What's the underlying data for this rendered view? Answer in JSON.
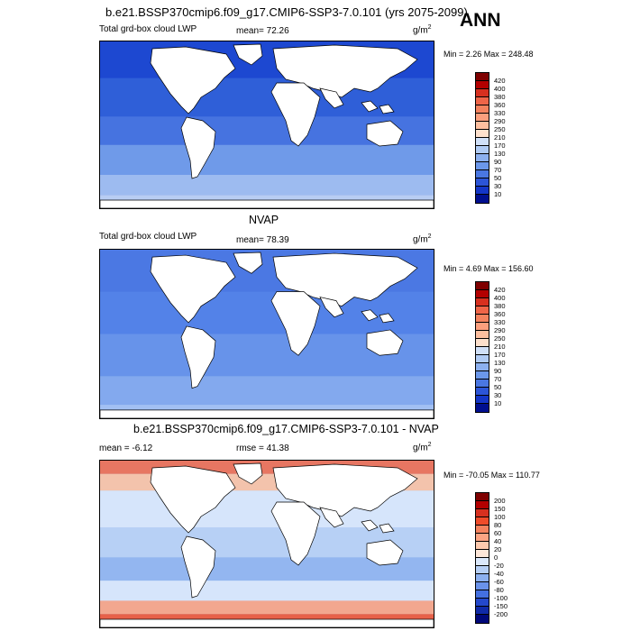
{
  "header": {
    "title": "b.e21.BSSP370cmip6.f09_g17.CMIP6-SSP3-7.0.101 (yrs 2075-2099)",
    "season": "ANN"
  },
  "panels": [
    {
      "id": "test",
      "title": "",
      "left_label": "Total grd-box cloud LWP",
      "center_label": "mean=  72.26",
      "units": "g/m",
      "units_sup": "2",
      "minmax": "Min =   2.26 Max = 248.48",
      "palette": "abs",
      "ocean_color": "#2f5fd8"
    },
    {
      "id": "obs",
      "title": "NVAP",
      "left_label": "Total grd-box cloud LWP",
      "center_label": "mean=  78.39",
      "units": "g/m",
      "units_sup": "2",
      "minmax": "Min =   4.69 Max = 156.60",
      "palette": "abs",
      "ocean_color": "#5383e8"
    },
    {
      "id": "diff",
      "title": "b.e21.BSSP370cmip6.f09_g17.CMIP6-SSP3-7.0.101 - NVAP",
      "left_label": "mean =  -6.12",
      "center_label": "rmse =  41.38",
      "units": "g/m",
      "units_sup": "2",
      "minmax": "Min = -70.05 Max = 110.77",
      "palette": "diff",
      "ocean_color": "#b9d3f6"
    }
  ],
  "colorbars": {
    "abs": {
      "labels": [
        "420",
        "400",
        "380",
        "360",
        "330",
        "290",
        "250",
        "210",
        "170",
        "130",
        "90",
        "70",
        "50",
        "30",
        "10"
      ],
      "colors": [
        "#7f0000",
        "#b30000",
        "#d7301f",
        "#ef6548",
        "#f4825e",
        "#fc9f7d",
        "#fdbf9f",
        "#fde0cc",
        "#d0e0f8",
        "#b0cbf4",
        "#8cb0ef",
        "#6b97ea",
        "#4a77e2",
        "#2c55d8",
        "#1436c8",
        "#000f8f"
      ]
    },
    "diff": {
      "labels": [
        "200",
        "150",
        "100",
        "80",
        "60",
        "40",
        "20",
        "0",
        "-20",
        "-40",
        "-60",
        "-80",
        "-100",
        "-150",
        "-200"
      ],
      "colors": [
        "#7f0000",
        "#b30000",
        "#d7301f",
        "#ef4c2a",
        "#f4825e",
        "#fca483",
        "#fdc9ad",
        "#fde6d8",
        "#dbe8fb",
        "#b6cff5",
        "#8cb0ef",
        "#6a92e9",
        "#4470e0",
        "#2448cc",
        "#102aa8",
        "#00087a"
      ]
    }
  }
}
